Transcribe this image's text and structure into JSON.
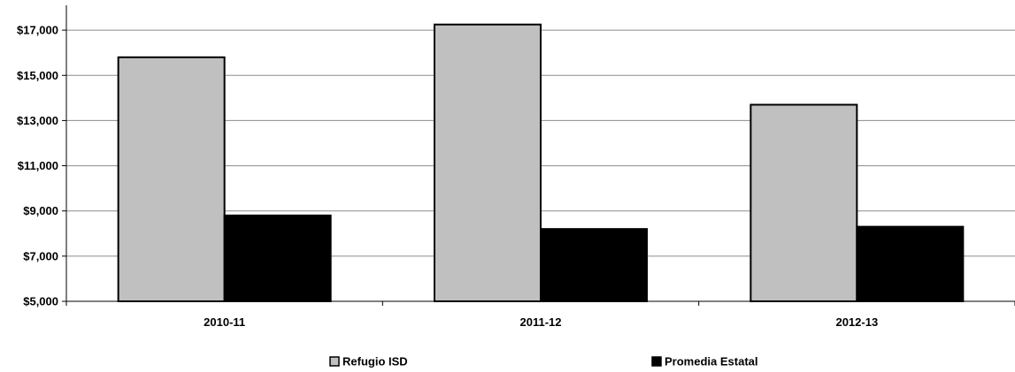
{
  "chart_data": {
    "type": "bar",
    "categories": [
      "2010-11",
      "2011-12",
      "2012-13"
    ],
    "series": [
      {
        "name": "Refugio ISD",
        "values": [
          15800,
          17250,
          13700
        ],
        "color": "#c0c0c0"
      },
      {
        "name": "Promedia Estatal",
        "values": [
          8800,
          8200,
          8300
        ],
        "color": "#000000"
      }
    ],
    "yticks": [
      5000,
      7000,
      9000,
      11000,
      13000,
      15000,
      17000
    ],
    "ytick_labels": [
      "$5,000",
      "$7,000",
      "$9,000",
      "$11,000",
      "$13,000",
      "$15,000",
      "$17,000"
    ],
    "ylim": [
      5000,
      18100
    ],
    "grid": true,
    "legend_position": "bottom"
  }
}
